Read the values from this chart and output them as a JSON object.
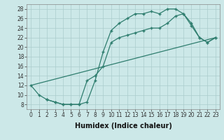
{
  "line1_x": [
    0,
    1,
    2,
    3,
    4,
    5,
    6,
    7,
    8,
    9,
    10,
    11,
    12,
    13,
    14,
    15,
    16,
    17,
    18,
    19,
    20,
    21,
    22,
    23
  ],
  "line1_y": [
    12,
    10,
    9,
    8.5,
    8,
    8,
    8,
    8.5,
    13,
    19,
    23.5,
    25,
    26,
    27,
    27,
    27.5,
    27,
    28,
    28,
    27,
    25,
    22,
    21,
    22
  ],
  "line2_x": [
    0,
    23
  ],
  "line2_y": [
    12,
    22
  ],
  "line3_x": [
    2,
    3,
    4,
    5,
    6,
    7,
    8,
    9,
    10,
    11,
    12,
    13,
    14,
    15,
    16,
    17,
    18,
    19,
    20,
    21,
    22,
    23
  ],
  "line3_y": [
    9,
    8.5,
    8,
    8,
    8,
    13,
    14,
    16,
    21,
    22,
    22.5,
    23,
    23.5,
    24,
    24,
    25,
    26.5,
    27,
    24.5,
    22,
    21,
    22
  ],
  "color": "#2e7d6e",
  "bg_color": "#cce8e8",
  "grid_color": "#aacccc",
  "xlabel": "Humidex (Indice chaleur)",
  "xlim": [
    -0.5,
    23.5
  ],
  "ylim": [
    7,
    29
  ],
  "xticks": [
    0,
    1,
    2,
    3,
    4,
    5,
    6,
    7,
    8,
    9,
    10,
    11,
    12,
    13,
    14,
    15,
    16,
    17,
    18,
    19,
    20,
    21,
    22,
    23
  ],
  "yticks": [
    8,
    10,
    12,
    14,
    16,
    18,
    20,
    22,
    24,
    26,
    28
  ],
  "marker": "+",
  "markersize": 3.5,
  "linewidth": 0.9,
  "tick_fontsize": 5.5,
  "xlabel_fontsize": 7
}
